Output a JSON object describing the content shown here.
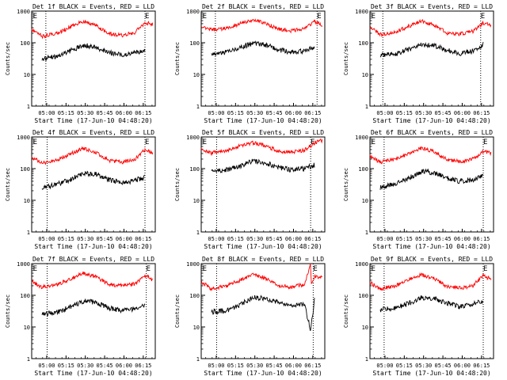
{
  "figure": {
    "panels": [
      {
        "title": "Det 1f BLACK = Events, RED = LLD"
      },
      {
        "title": "Det 2f BLACK = Events, RED = LLD"
      },
      {
        "title": "Det 3f BLACK = Events, RED = LLD"
      },
      {
        "title": "Det 4f BLACK = Events, RED = LLD"
      },
      {
        "title": "Det 5f BLACK = Events, RED = LLD"
      },
      {
        "title": "Det 6f BLACK = Events, RED = LLD"
      },
      {
        "title": "Det 7f BLACK = Events, RED = LLD"
      },
      {
        "title": "Det 8f BLACK = Events, RED = LLD"
      },
      {
        "title": "Det 9f BLACK = Events, RED = LLD"
      }
    ],
    "xlabel": "Start Time (17-Jun-10 04:48:20)",
    "ylabel": "Counts/sec",
    "marker_label": "E",
    "xticks": [
      "05:00",
      "05:15",
      "05:30",
      "05:45",
      "06:00",
      "06:15"
    ],
    "yticks": [
      "1",
      "10",
      "100",
      "1000"
    ]
  },
  "chart_data": {
    "type": "line",
    "y_scale": "log",
    "ylim": [
      1,
      1000
    ],
    "x_unit": "minutes since 04:48:20",
    "xlim": [
      0,
      96
    ],
    "tick_minutes": [
      11.67,
      26.67,
      41.67,
      56.67,
      71.67,
      86.67
    ],
    "series_colors": {
      "Events": "#000000",
      "LLD": "#ff0000"
    },
    "panels": [
      {
        "name": "Det 1f",
        "x_events": [
          8,
          20,
          30,
          40,
          50,
          60,
          70,
          80,
          88
        ],
        "events": [
          30,
          38,
          55,
          85,
          70,
          50,
          42,
          50,
          55
        ],
        "x_lld": [
          0,
          8,
          20,
          30,
          40,
          50,
          60,
          70,
          80,
          88,
          94
        ],
        "lld": [
          270,
          160,
          200,
          310,
          480,
          350,
          190,
          170,
          210,
          430,
          380
        ],
        "markers": [
          11,
          88
        ],
        "e_labels": [
          1,
          88
        ]
      },
      {
        "name": "Det 2f",
        "x_events": [
          8,
          20,
          30,
          40,
          50,
          60,
          70,
          80,
          88
        ],
        "events": [
          45,
          50,
          70,
          95,
          85,
          60,
          50,
          55,
          70
        ],
        "x_lld": [
          0,
          8,
          20,
          30,
          40,
          50,
          60,
          70,
          80,
          88,
          94
        ],
        "lld": [
          350,
          250,
          290,
          400,
          530,
          410,
          270,
          240,
          280,
          470,
          350
        ],
        "markers": [
          11,
          90
        ],
        "e_labels": [
          1,
          90
        ]
      },
      {
        "name": "Det 3f",
        "x_events": [
          8,
          20,
          30,
          40,
          50,
          60,
          70,
          80,
          88
        ],
        "events": [
          40,
          45,
          62,
          85,
          80,
          58,
          46,
          55,
          90
        ],
        "x_lld": [
          0,
          8,
          20,
          30,
          40,
          50,
          60,
          70,
          80,
          88,
          94
        ],
        "lld": [
          330,
          180,
          220,
          330,
          480,
          360,
          200,
          190,
          230,
          420,
          360
        ],
        "markers": [
          10,
          86
        ],
        "e_labels": [
          1,
          86
        ]
      },
      {
        "name": "Det 4f",
        "x_events": [
          8,
          20,
          30,
          40,
          50,
          60,
          70,
          80,
          88
        ],
        "events": [
          25,
          32,
          45,
          72,
          68,
          45,
          35,
          42,
          55
        ],
        "x_lld": [
          0,
          8,
          20,
          30,
          40,
          50,
          60,
          70,
          80,
          88,
          94
        ],
        "lld": [
          230,
          150,
          190,
          290,
          440,
          330,
          180,
          160,
          190,
          400,
          310
        ],
        "markers": [
          12,
          88
        ],
        "e_labels": [
          1,
          88
        ]
      },
      {
        "name": "Det 5f",
        "x_events": [
          8,
          20,
          30,
          40,
          50,
          60,
          70,
          80,
          88
        ],
        "events": [
          80,
          90,
          120,
          175,
          150,
          110,
          90,
          100,
          130
        ],
        "x_lld": [
          0,
          8,
          20,
          30,
          40,
          50,
          60,
          70,
          80,
          88,
          94
        ],
        "lld": [
          420,
          310,
          380,
          520,
          660,
          520,
          360,
          330,
          380,
          650,
          780
        ],
        "markers": [
          12,
          85
        ],
        "e_labels": [
          1,
          85
        ]
      },
      {
        "name": "Det 6f",
        "x_events": [
          8,
          20,
          30,
          40,
          50,
          60,
          70,
          80,
          88
        ],
        "events": [
          25,
          35,
          50,
          82,
          75,
          50,
          40,
          45,
          60
        ],
        "x_lld": [
          0,
          8,
          20,
          30,
          40,
          50,
          60,
          70,
          80,
          88,
          94
        ],
        "lld": [
          260,
          160,
          200,
          300,
          450,
          340,
          190,
          170,
          200,
          360,
          310
        ],
        "markers": [
          11,
          88
        ],
        "e_labels": [
          1,
          88
        ]
      },
      {
        "name": "Det 7f",
        "x_events": [
          8,
          20,
          30,
          40,
          50,
          60,
          70,
          80,
          88
        ],
        "events": [
          25,
          30,
          42,
          65,
          60,
          40,
          32,
          38,
          52
        ],
        "x_lld": [
          0,
          8,
          20,
          30,
          40,
          50,
          60,
          70,
          80,
          88,
          94
        ],
        "lld": [
          280,
          180,
          220,
          330,
          500,
          380,
          220,
          200,
          230,
          420,
          310
        ],
        "markers": [
          12,
          89
        ],
        "e_labels": [
          1,
          89
        ]
      },
      {
        "name": "Det 8f",
        "x_events": [
          8,
          20,
          30,
          40,
          50,
          60,
          70,
          80,
          85,
          88
        ],
        "events": [
          30,
          32,
          50,
          85,
          80,
          58,
          45,
          55,
          8,
          70
        ],
        "x_lld": [
          0,
          8,
          20,
          30,
          40,
          50,
          60,
          70,
          80,
          85,
          85.5,
          88,
          94
        ],
        "lld": [
          270,
          160,
          200,
          300,
          460,
          350,
          200,
          180,
          220,
          1000,
          230,
          400,
          360
        ],
        "markers": [
          12,
          87
        ],
        "e_labels": [
          1,
          87
        ]
      },
      {
        "name": "Det 9f",
        "x_events": [
          8,
          20,
          30,
          40,
          50,
          60,
          70,
          80,
          88
        ],
        "events": [
          35,
          40,
          55,
          85,
          78,
          55,
          44,
          52,
          70
        ],
        "x_lld": [
          0,
          8,
          20,
          30,
          40,
          50,
          60,
          70,
          80,
          88,
          94
        ],
        "lld": [
          250,
          160,
          200,
          300,
          450,
          340,
          190,
          170,
          200,
          420,
          320
        ],
        "markers": [
          11,
          88
        ],
        "e_labels": [
          1,
          88
        ]
      }
    ]
  }
}
